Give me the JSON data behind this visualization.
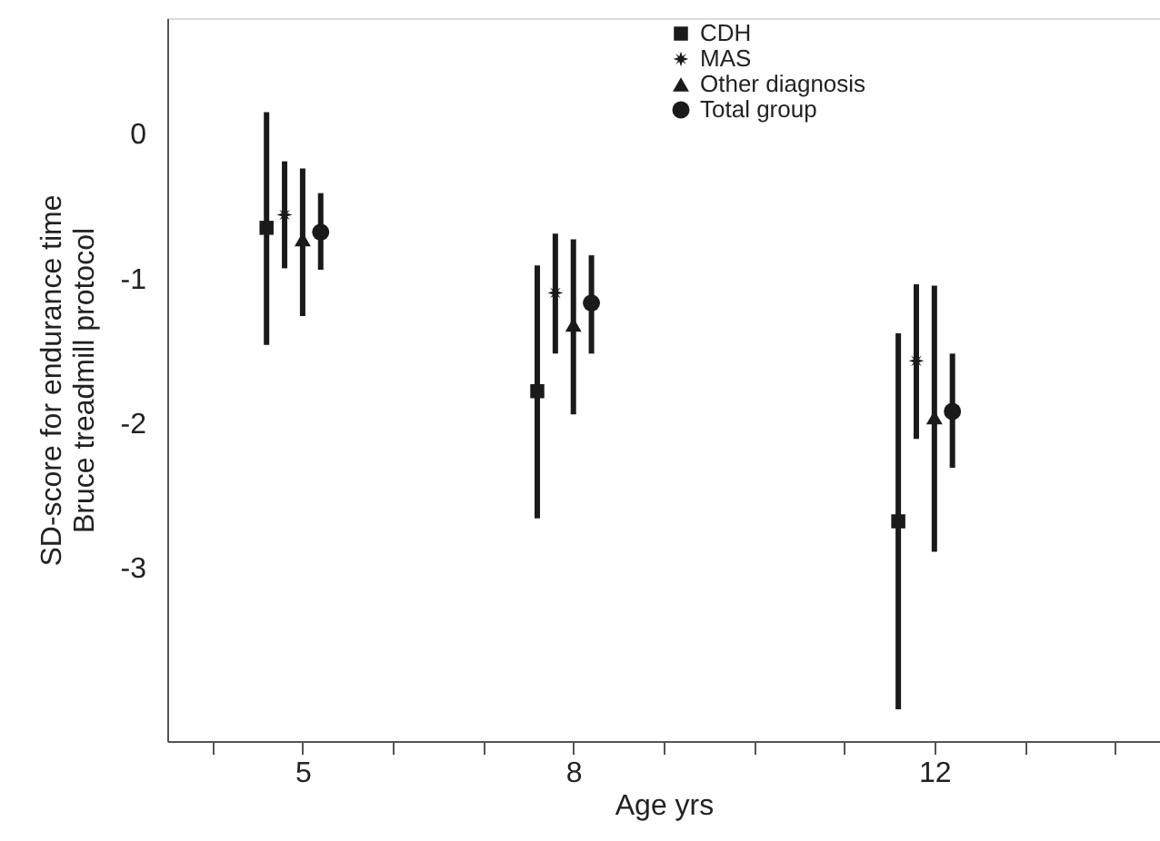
{
  "chart_data": {
    "type": "scatter",
    "xlabel": "Age yrs",
    "ylabel": "SD-score for endurance time\nBruce treadmill protocol",
    "xlim": [
      3.5,
      14.5
    ],
    "ylim": [
      -4.2,
      0.8
    ],
    "xticks": [
      {
        "value": 4,
        "label": null
      },
      5,
      {
        "value": 6,
        "label": null
      },
      {
        "value": 7,
        "label": null
      },
      8,
      {
        "value": 9,
        "label": null
      },
      {
        "value": 10,
        "label": null
      },
      {
        "value": 11,
        "label": null
      },
      12,
      {
        "value": 13,
        "label": null
      },
      {
        "value": 14,
        "label": null
      }
    ],
    "yticks": [
      0,
      -1,
      -2,
      -3
    ],
    "grid": false,
    "legend": "top right",
    "series": [
      {
        "name": "CDH",
        "color": "#1a1a1a",
        "marker": "square",
        "x": [
          4.6,
          7.6,
          11.6
        ],
        "values": [
          -0.65,
          -1.78,
          -2.68
        ],
        "errors": [
          [
            -1.46,
            0.15
          ],
          [
            -2.66,
            -0.91
          ],
          [
            -3.98,
            -1.38
          ]
        ]
      },
      {
        "name": "MAS",
        "color": "#1a1a1a",
        "marker": "star",
        "x": [
          4.8,
          7.8,
          11.8
        ],
        "values": [
          -0.56,
          -1.1,
          -1.57
        ],
        "errors": [
          [
            -0.93,
            -0.19
          ],
          [
            -1.52,
            -0.69
          ],
          [
            -2.11,
            -1.04
          ]
        ]
      },
      {
        "name": "Other diagnosis",
        "color": "#1a1a1a",
        "marker": "triangle",
        "x": [
          5.0,
          8.0,
          12.0
        ],
        "values": [
          -0.73,
          -1.32,
          -1.96
        ],
        "errors": [
          [
            -1.26,
            -0.24
          ],
          [
            -1.94,
            -0.73
          ],
          [
            -2.89,
            -1.05
          ]
        ]
      },
      {
        "name": "Total group",
        "color": "#1a1a1a",
        "marker": "circle",
        "x": [
          5.2,
          8.2,
          12.2
        ],
        "values": [
          -0.68,
          -1.17,
          -1.92
        ],
        "errors": [
          [
            -0.94,
            -0.41
          ],
          [
            -1.52,
            -0.84
          ],
          [
            -2.31,
            -1.52
          ]
        ]
      }
    ]
  }
}
